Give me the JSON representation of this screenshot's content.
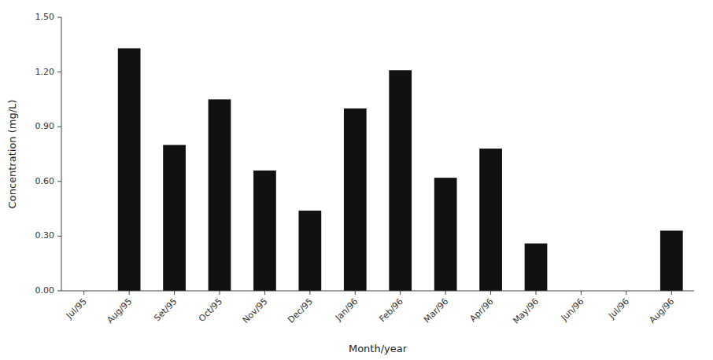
{
  "chart_data": {
    "type": "bar",
    "categories": [
      "Jul/95",
      "Aug/95",
      "Set/95",
      "Oct/95",
      "Nov/95",
      "Dec/95",
      "Jan/96",
      "Feb/96",
      "Mar/96",
      "Apr/96",
      "May/96",
      "Jun/96",
      "Jul/96",
      "Aug/96"
    ],
    "values": [
      0.0,
      1.33,
      0.8,
      1.05,
      0.66,
      0.44,
      1.0,
      1.21,
      0.62,
      0.78,
      0.26,
      0.0,
      0.0,
      0.33
    ],
    "color": "#111111",
    "xlabel": "Month/year",
    "ylabel": "Concentration (mg/L)",
    "ylim": [
      0.0,
      1.5
    ],
    "yticks": [
      {
        "value": 0.0,
        "label": "0.00"
      },
      {
        "value": 0.3,
        "label": "0.30"
      },
      {
        "value": 0.6,
        "label": "0.60"
      },
      {
        "value": 0.9,
        "label": "0.90"
      },
      {
        "value": 1.2,
        "label": "1.20"
      },
      {
        "value": 1.5,
        "label": "1.50"
      }
    ]
  }
}
